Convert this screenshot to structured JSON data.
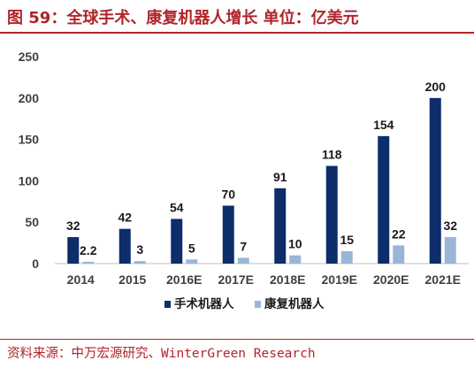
{
  "header": {
    "title": "图 59：全球手术、康复机器人增长 单位：亿美元"
  },
  "footer": {
    "source": "资料来源：中万宏源研究、WinterGreen Research"
  },
  "chart_data": {
    "type": "bar",
    "categories": [
      "2014",
      "2015",
      "2016E",
      "2017E",
      "2018E",
      "2019E",
      "2020E",
      "2021E"
    ],
    "series": [
      {
        "name": "手术机器人",
        "values": [
          32,
          42,
          54,
          70,
          91,
          118,
          154,
          200
        ],
        "labels": [
          "32",
          "42",
          "54",
          "70",
          "91",
          "118",
          "154",
          "200"
        ],
        "color": "#0d2d6b"
      },
      {
        "name": "康复机器人",
        "values": [
          2.2,
          3,
          5,
          7,
          10,
          15,
          22,
          32
        ],
        "labels": [
          "2.2",
          "3",
          "5",
          "7",
          "10",
          "15",
          "22",
          "32"
        ],
        "color": "#9ab5d8"
      }
    ],
    "ylim": [
      0,
      250
    ],
    "yticks": [
      "0",
      "50",
      "100",
      "150",
      "200",
      "250"
    ],
    "grid": false,
    "legend_position": "bottom-center"
  }
}
